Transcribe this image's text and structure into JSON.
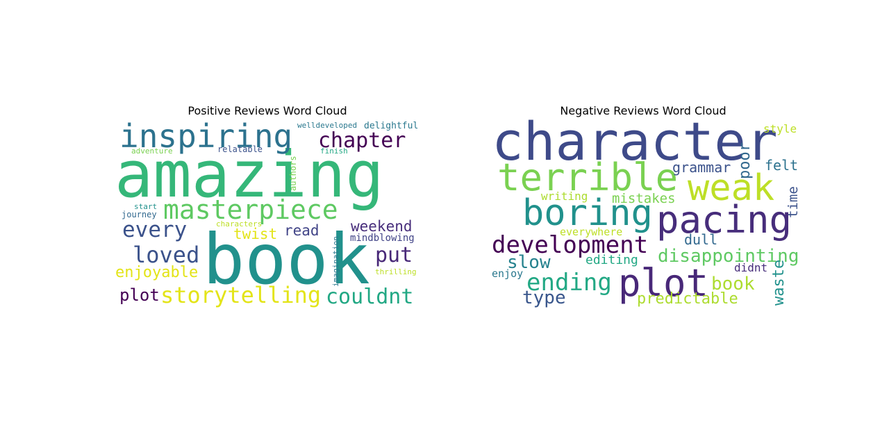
{
  "chart_data": [
    {
      "type": "wordcloud",
      "title": "Positive Reviews Word Cloud",
      "words": [
        {
          "text": "amazing",
          "weight": 100,
          "color": "#35b779"
        },
        {
          "text": "book",
          "weight": 100,
          "color": "#21918c"
        },
        {
          "text": "inspiring",
          "weight": 43,
          "color": "#2c728e"
        },
        {
          "text": "masterpiece",
          "weight": 40,
          "color": "#5ec962"
        },
        {
          "text": "storytelling",
          "weight": 32,
          "color": "#e3e418"
        },
        {
          "text": "couldnt",
          "weight": 30,
          "color": "#22a884"
        },
        {
          "text": "chapter",
          "weight": 30,
          "color": "#440154"
        },
        {
          "text": "loved",
          "weight": 30,
          "color": "#3b528b"
        },
        {
          "text": "every",
          "weight": 29,
          "color": "#3b528b"
        },
        {
          "text": "put",
          "weight": 30,
          "color": "#482878"
        },
        {
          "text": "enjoyable",
          "weight": 22,
          "color": "#e3e418"
        },
        {
          "text": "plot",
          "weight": 24,
          "color": "#440154"
        },
        {
          "text": "twist",
          "weight": 21,
          "color": "#e3e418"
        },
        {
          "text": "read",
          "weight": 21,
          "color": "#414487"
        },
        {
          "text": "weekend",
          "weight": 21,
          "color": "#472d7b"
        },
        {
          "text": "mindblowing",
          "weight": 14,
          "color": "#414487"
        },
        {
          "text": "delightful",
          "weight": 13,
          "color": "#2a788e"
        },
        {
          "text": "welldeveloped",
          "weight": 11,
          "color": "#2a788e"
        },
        {
          "text": "relatable",
          "weight": 12,
          "color": "#3b528b"
        },
        {
          "text": "adventure",
          "weight": 11,
          "color": "#7ad151"
        },
        {
          "text": "finish",
          "weight": 11,
          "color": "#22a884"
        },
        {
          "text": "authors",
          "weight": 12,
          "color": "#7ad151"
        },
        {
          "text": "start",
          "weight": 11,
          "color": "#21918c"
        },
        {
          "text": "journey",
          "weight": 12,
          "color": "#31688e"
        },
        {
          "text": "characters",
          "weight": 11,
          "color": "#bddf26"
        },
        {
          "text": "imagination",
          "weight": 11,
          "color": "#2a788e"
        },
        {
          "text": "thrilling",
          "weight": 11,
          "color": "#bddf26"
        }
      ]
    },
    {
      "type": "wordcloud",
      "title": "Negative Reviews Word Cloud",
      "words": [
        {
          "text": "character",
          "weight": 100,
          "color": "#3e4a89"
        },
        {
          "text": "terrible",
          "weight": 80,
          "color": "#7ad151"
        },
        {
          "text": "weak",
          "weight": 60,
          "color": "#bddf26"
        },
        {
          "text": "pacing",
          "weight": 70,
          "color": "#472d7b"
        },
        {
          "text": "boring",
          "weight": 65,
          "color": "#21918c"
        },
        {
          "text": "plot",
          "weight": 75,
          "color": "#482878"
        },
        {
          "text": "development",
          "weight": 45,
          "color": "#440154"
        },
        {
          "text": "ending",
          "weight": 45,
          "color": "#22a884"
        },
        {
          "text": "disappointing",
          "weight": 35,
          "color": "#5ec962"
        },
        {
          "text": "slow",
          "weight": 30,
          "color": "#26828e"
        },
        {
          "text": "type",
          "weight": 28,
          "color": "#39568c"
        },
        {
          "text": "book",
          "weight": 28,
          "color": "#addc30"
        },
        {
          "text": "predictable",
          "weight": 25,
          "color": "#addc30"
        },
        {
          "text": "grammar",
          "weight": 22,
          "color": "#3b528b"
        },
        {
          "text": "felt",
          "weight": 22,
          "color": "#2c728e"
        },
        {
          "text": "poor",
          "weight": 22,
          "color": "#31688e"
        },
        {
          "text": "mistakes",
          "weight": 20,
          "color": "#7ad151"
        },
        {
          "text": "writing",
          "weight": 18,
          "color": "#addc30"
        },
        {
          "text": "style",
          "weight": 16,
          "color": "#bddf26"
        },
        {
          "text": "time",
          "weight": 20,
          "color": "#3b528b"
        },
        {
          "text": "dull",
          "weight": 20,
          "color": "#31688e"
        },
        {
          "text": "editing",
          "weight": 18,
          "color": "#22a884"
        },
        {
          "text": "everywhere",
          "weight": 16,
          "color": "#bddf26"
        },
        {
          "text": "enjoy",
          "weight": 15,
          "color": "#2a788e"
        },
        {
          "text": "didnt",
          "weight": 16,
          "color": "#472d7b"
        },
        {
          "text": "waste",
          "weight": 22,
          "color": "#21918c"
        }
      ]
    }
  ]
}
